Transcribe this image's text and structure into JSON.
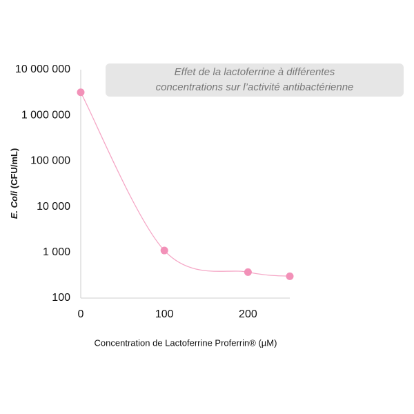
{
  "chart_data": {
    "type": "line",
    "title": [
      "Effet de la lactoferrine à différentes",
      "concentrations sur l’activité antibactérienne"
    ],
    "x_label": "Concentration de Lactoferrine Proferrin® (µM)",
    "y_label_italic": "E. Coli",
    "y_label": "(CFU/mL)",
    "x": [
      0,
      100,
      200,
      250
    ],
    "series": [
      {
        "color": "#f291b8",
        "values": [
          3200000,
          1100,
          370,
          300
        ]
      }
    ],
    "xlim": [
      0,
      250
    ],
    "xticks": [
      0,
      100,
      200
    ],
    "ylim": [
      100,
      10000000
    ],
    "log_y": true,
    "yticks": [
      {
        "value": 100,
        "label": "100"
      },
      {
        "value": 1000,
        "label": "1 000"
      },
      {
        "value": 10000,
        "label": "10 000"
      },
      {
        "value": 100000,
        "label": "100 000"
      },
      {
        "value": 1000000,
        "label": "1 000 000"
      },
      {
        "value": 10000000,
        "label": "10 000 000"
      }
    ],
    "smooth": true
  }
}
